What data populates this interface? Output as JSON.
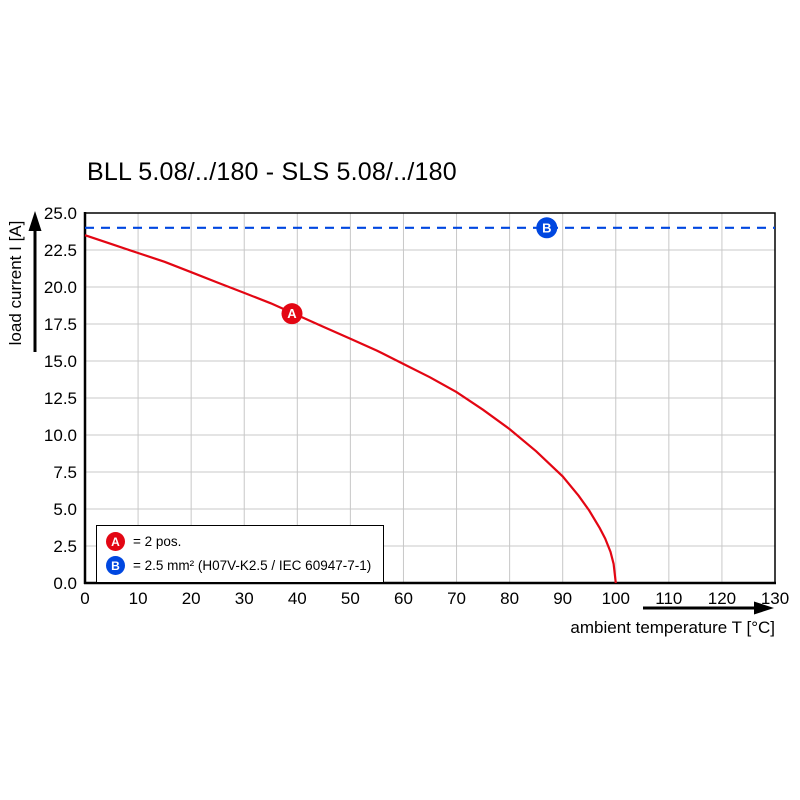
{
  "chart_data": {
    "type": "line",
    "title": "BLL 5.08/../180 - SLS 5.08/../180",
    "xlabel": "ambient temperature T [°C]",
    "ylabel": "load current I [A]",
    "xlim": [
      0,
      130
    ],
    "ylim": [
      0,
      25
    ],
    "x_ticks": [
      0,
      10,
      20,
      30,
      40,
      50,
      60,
      70,
      80,
      90,
      100,
      110,
      120,
      130
    ],
    "y_ticks": [
      0,
      2.5,
      5,
      7.5,
      10,
      12.5,
      15,
      17.5,
      20,
      22.5,
      25
    ],
    "y_tick_labels": [
      "0.0",
      "2.5",
      "5.0",
      "7.5",
      "10.0",
      "12.5",
      "15.0",
      "17.5",
      "20.0",
      "22.5",
      "25.0"
    ],
    "grid": true,
    "legend_position": "bottom-left",
    "series": [
      {
        "name": "A",
        "label": "= 2 pos.",
        "color": "#e30613",
        "style": "solid",
        "marker_at": {
          "x": 39,
          "y": 18.2
        },
        "points": [
          [
            0,
            23.5
          ],
          [
            5,
            22.9
          ],
          [
            10,
            22.3
          ],
          [
            15,
            21.7
          ],
          [
            20,
            21.0
          ],
          [
            25,
            20.3
          ],
          [
            30,
            19.6
          ],
          [
            35,
            18.9
          ],
          [
            40,
            18.1
          ],
          [
            45,
            17.3
          ],
          [
            50,
            16.5
          ],
          [
            55,
            15.7
          ],
          [
            60,
            14.8
          ],
          [
            65,
            13.9
          ],
          [
            70,
            12.9
          ],
          [
            75,
            11.7
          ],
          [
            80,
            10.4
          ],
          [
            85,
            8.9
          ],
          [
            90,
            7.2
          ],
          [
            93,
            5.9
          ],
          [
            95,
            4.9
          ],
          [
            97,
            3.7
          ],
          [
            98,
            3.0
          ],
          [
            99,
            2.1
          ],
          [
            99.6,
            1.3
          ],
          [
            100,
            0
          ]
        ]
      },
      {
        "name": "B",
        "label": "= 2.5 mm² (H07V-K2.5 / IEC 60947-7-1)",
        "color": "#0047e0",
        "style": "dashed",
        "marker_at": {
          "x": 87,
          "y": 24
        },
        "points": [
          [
            0,
            24
          ],
          [
            130,
            24
          ]
        ]
      }
    ]
  }
}
